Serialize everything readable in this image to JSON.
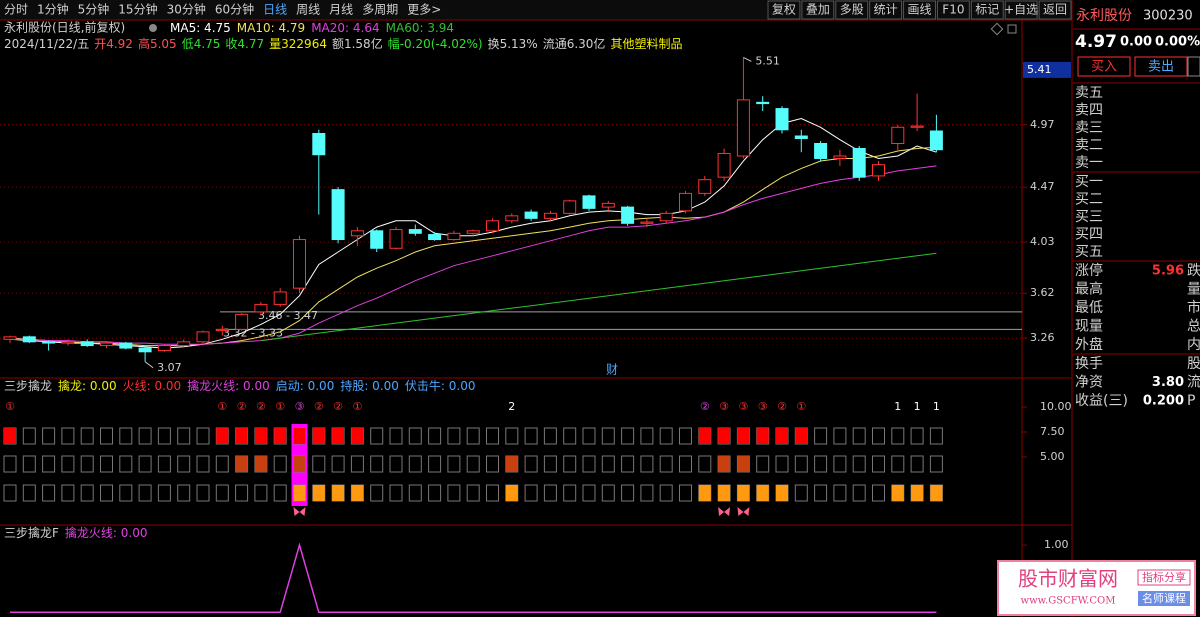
{
  "toolbar": {
    "periods": [
      "分时",
      "1分钟",
      "5分钟",
      "15分钟",
      "30分钟",
      "60分钟",
      "日线",
      "周线",
      "月线",
      "多周期",
      "更多>"
    ],
    "active": "日线",
    "tools": [
      "复权",
      "叠加",
      "多股",
      "统计",
      "画线",
      "F10",
      "标记",
      "+自选",
      "返回"
    ]
  },
  "info": {
    "title": "永利股份(日线,前复权)",
    "segments": [
      {
        "text": "2024/11/22/五",
        "color": "#d0d0d0"
      },
      {
        "text": "开4.92",
        "color": "#ff5050"
      },
      {
        "text": "高5.05",
        "color": "#ff5050"
      },
      {
        "text": "低4.75",
        "color": "#30e030"
      },
      {
        "text": "收4.77",
        "color": "#30e030"
      },
      {
        "text": "量322964",
        "color": "#f0f000"
      },
      {
        "text": "额1.58亿",
        "color": "#d0d0d0"
      },
      {
        "text": "幅-0.20(-4.02%)",
        "color": "#30e030"
      },
      {
        "text": "换5.13%",
        "color": "#d0d0d0"
      },
      {
        "text": "流通6.30亿",
        "color": "#d0d0d0"
      },
      {
        "text": "其他塑料制品",
        "color": "#f0f000"
      }
    ]
  },
  "chart_data": {
    "type": "candlestick",
    "open": [
      3.25,
      3.27,
      3.23,
      3.22,
      3.23,
      3.2,
      3.22,
      3.18,
      3.16,
      3.2,
      3.23,
      3.32,
      3.33,
      3.47,
      3.53,
      3.66,
      4.9,
      4.45,
      4.08,
      4.12,
      3.98,
      4.13,
      4.09,
      4.05,
      4.1,
      4.12,
      4.2,
      4.27,
      4.22,
      4.26,
      4.4,
      4.31,
      4.31,
      4.18,
      4.2,
      4.28,
      4.42,
      4.55,
      4.72,
      5.15,
      5.1,
      4.88,
      4.82,
      4.7,
      4.78,
      4.56,
      4.82,
      4.95,
      4.92
    ],
    "high": [
      3.28,
      3.28,
      3.24,
      3.25,
      3.25,
      3.23,
      3.23,
      3.2,
      3.21,
      3.25,
      3.32,
      3.36,
      3.46,
      3.55,
      3.66,
      4.08,
      4.93,
      4.47,
      4.15,
      4.13,
      4.15,
      4.17,
      4.11,
      4.12,
      4.13,
      4.22,
      4.26,
      4.29,
      4.28,
      4.37,
      4.41,
      4.36,
      4.32,
      4.22,
      4.28,
      4.44,
      4.56,
      4.78,
      5.51,
      5.2,
      5.12,
      4.93,
      4.84,
      4.77,
      4.8,
      4.68,
      4.97,
      5.22,
      5.05
    ],
    "low": [
      3.22,
      3.22,
      3.16,
      3.2,
      3.19,
      3.18,
      3.17,
      3.07,
      3.15,
      3.19,
      3.22,
      3.28,
      3.32,
      3.44,
      3.51,
      3.62,
      4.25,
      4.02,
      4.0,
      3.95,
      3.97,
      4.08,
      4.04,
      4.04,
      4.08,
      4.1,
      4.18,
      4.2,
      4.2,
      4.25,
      4.28,
      4.28,
      4.16,
      4.15,
      4.18,
      4.26,
      4.4,
      4.52,
      4.7,
      5.08,
      4.9,
      4.75,
      4.68,
      4.64,
      4.52,
      4.52,
      4.75,
      4.92,
      4.75
    ],
    "close": [
      3.27,
      3.23,
      3.22,
      3.23,
      3.2,
      3.22,
      3.18,
      3.15,
      3.2,
      3.23,
      3.31,
      3.33,
      3.45,
      3.53,
      3.63,
      4.05,
      4.73,
      4.05,
      4.12,
      3.98,
      4.13,
      4.1,
      4.05,
      4.1,
      4.12,
      4.2,
      4.24,
      4.22,
      4.26,
      4.36,
      4.3,
      4.34,
      4.18,
      4.19,
      4.26,
      4.42,
      4.53,
      4.74,
      5.17,
      5.14,
      4.93,
      4.86,
      4.7,
      4.72,
      4.55,
      4.65,
      4.95,
      4.96,
      4.77
    ],
    "up_color": "#ff3232",
    "down_color": "#54fcfc",
    "series": [
      {
        "name": "MA5: 4.75",
        "color": "#ffffff",
        "values": [
          3.25,
          3.24,
          3.23,
          3.22,
          3.22,
          3.21,
          3.2,
          3.19,
          3.18,
          3.19,
          3.21,
          3.25,
          3.3,
          3.37,
          3.45,
          3.6,
          3.85,
          3.95,
          4.05,
          4.15,
          4.2,
          4.2,
          4.1,
          4.08,
          4.08,
          4.11,
          4.15,
          4.18,
          4.2,
          4.24,
          4.27,
          4.28,
          4.27,
          4.25,
          4.25,
          4.28,
          4.35,
          4.48,
          4.68,
          4.85,
          4.98,
          5.02,
          4.95,
          4.85,
          4.76,
          4.7,
          4.72,
          4.8,
          4.75
        ]
      },
      {
        "name": "MA10: 4.79",
        "color": "#f0e060",
        "values": [
          3.26,
          3.25,
          3.24,
          3.23,
          3.22,
          3.22,
          3.21,
          3.2,
          3.2,
          3.2,
          3.21,
          3.22,
          3.24,
          3.27,
          3.31,
          3.4,
          3.55,
          3.65,
          3.75,
          3.82,
          3.88,
          3.95,
          4.0,
          4.02,
          4.04,
          4.06,
          4.08,
          4.1,
          4.12,
          4.15,
          4.18,
          4.2,
          4.21,
          4.22,
          4.23,
          4.22,
          4.23,
          4.27,
          4.35,
          4.45,
          4.55,
          4.62,
          4.68,
          4.7,
          4.7,
          4.72,
          4.76,
          4.78,
          4.79
        ]
      },
      {
        "name": "MA20: 4.64",
        "color": "#e040e0",
        "values": [
          3.25,
          3.25,
          3.24,
          3.24,
          3.23,
          3.23,
          3.22,
          3.22,
          3.21,
          3.21,
          3.21,
          3.22,
          3.23,
          3.24,
          3.26,
          3.3,
          3.38,
          3.45,
          3.52,
          3.58,
          3.65,
          3.72,
          3.78,
          3.84,
          3.88,
          3.92,
          3.96,
          4.0,
          4.04,
          4.08,
          4.12,
          4.15,
          4.15,
          4.16,
          4.18,
          4.2,
          4.23,
          4.27,
          4.33,
          4.38,
          4.42,
          4.46,
          4.5,
          4.53,
          4.55,
          4.57,
          4.6,
          4.62,
          4.64
        ]
      },
      {
        "name": "MA60: 3.94",
        "color": "#30c030",
        "values": [
          null,
          null,
          null,
          null,
          null,
          null,
          null,
          null,
          null,
          null,
          null,
          null,
          null,
          3.24,
          3.26,
          3.28,
          3.3,
          3.32,
          3.34,
          3.36,
          3.38,
          3.4,
          3.42,
          3.44,
          3.46,
          3.48,
          3.5,
          3.52,
          3.54,
          3.56,
          3.58,
          3.6,
          3.62,
          3.64,
          3.66,
          3.68,
          3.7,
          3.72,
          3.74,
          3.76,
          3.78,
          3.8,
          3.82,
          3.84,
          3.86,
          3.88,
          3.9,
          3.92,
          3.94
        ]
      }
    ],
    "ylim": [
      2.94,
      5.81
    ],
    "yticks": [
      3.26,
      3.62,
      4.03,
      4.47,
      4.97
    ],
    "grid": true,
    "price_marker": 5.41,
    "gaps": [
      {
        "low": 3.46,
        "high": 3.47,
        "label": "3.46 - 3.47"
      },
      {
        "low": 3.32,
        "high": 3.33,
        "label": "3.32 - 3.33"
      }
    ],
    "event_marker": "财"
  },
  "indicator": {
    "legend": [
      {
        "text": "三步擒龙",
        "color": "#d0d0d0"
      },
      {
        "text": "擒龙: 0.00",
        "color": "#f0f000"
      },
      {
        "text": "火线: 0.00",
        "color": "#ff3030"
      },
      {
        "text": "擒龙火线: 0.00",
        "color": "#e040e0"
      },
      {
        "text": "启动: 0.00",
        "color": "#4da6ff"
      },
      {
        "text": "持股: 0.00",
        "color": "#4da6ff"
      },
      {
        "text": "伏击牛: 0.00",
        "color": "#4da6ff"
      }
    ],
    "ylim": [
      -1.5,
      11.2
    ],
    "yticks": [
      {
        "value": 10,
        "label": "10.00"
      },
      {
        "value": 7.5,
        "label": "7.50"
      },
      {
        "value": 5,
        "label": "5.00"
      }
    ],
    "signals": [
      {
        "col": 0,
        "text": "①",
        "color": "#ff3030"
      },
      {
        "col": 11,
        "text": "①",
        "color": "#ff3030"
      },
      {
        "col": 12,
        "text": "②",
        "color": "#ff3030"
      },
      {
        "col": 13,
        "text": "②",
        "color": "#ff3030"
      },
      {
        "col": 14,
        "text": "①",
        "color": "#ff3030"
      },
      {
        "col": 15,
        "text": "③",
        "color": "#e040e0"
      },
      {
        "col": 16,
        "text": "②",
        "color": "#ff3030"
      },
      {
        "col": 17,
        "text": "②",
        "color": "#ff3030"
      },
      {
        "col": 18,
        "text": "①",
        "color": "#ff3030"
      },
      {
        "col": 26,
        "text": "2",
        "color": "#ffffff"
      },
      {
        "col": 36,
        "text": "②",
        "color": "#e040e0"
      },
      {
        "col": 37,
        "text": "③",
        "color": "#ff3030"
      },
      {
        "col": 38,
        "text": "③",
        "color": "#ff3030"
      },
      {
        "col": 39,
        "text": "③",
        "color": "#ff3030"
      },
      {
        "col": 40,
        "text": "②",
        "color": "#ff3030"
      },
      {
        "col": 41,
        "text": "①",
        "color": "#ff3030"
      },
      {
        "col": 46,
        "text": "1",
        "color": "#ffffff"
      },
      {
        "col": 47,
        "text": "1",
        "color": "#ffffff"
      },
      {
        "col": 48,
        "text": "1",
        "color": "#ffffff"
      }
    ],
    "rows": [
      {
        "color": "#ff0000",
        "columns": [
          0,
          11,
          12,
          13,
          14,
          15,
          16,
          17,
          18,
          36,
          37,
          38,
          39,
          40,
          41
        ]
      },
      {
        "color": "#c84010",
        "columns": [
          12,
          13,
          15,
          26,
          37,
          38
        ]
      },
      {
        "color": "#ff9a10",
        "columns": [
          15,
          16,
          17,
          18,
          26,
          36,
          37,
          38,
          39,
          40,
          46,
          47,
          48
        ]
      }
    ],
    "highlight": {
      "color": "#ff00ff",
      "columns": [
        15
      ]
    },
    "butterflies": {
      "color": "#ff6088",
      "columns": [
        15,
        37,
        38
      ]
    }
  },
  "indicator2": {
    "legend": [
      {
        "text": "三步擒龙F",
        "color": "#d0d0d0"
      },
      {
        "text": "擒龙火线: 0.00",
        "color": "#e040e0"
      }
    ],
    "ylim": [
      -0.07,
      1.15
    ],
    "yticks": [
      {
        "value": 1,
        "label": "1.00"
      }
    ],
    "color": "#e040e0",
    "values": [
      0,
      0,
      0,
      0,
      0,
      0,
      0,
      0,
      0,
      0,
      0,
      0,
      0,
      0,
      0,
      1,
      0,
      0,
      0,
      0,
      0,
      0,
      0,
      0,
      0,
      0,
      0,
      0,
      0,
      0,
      0,
      0,
      0,
      0,
      0,
      0,
      0,
      0,
      0,
      0,
      0,
      0,
      0,
      0,
      0,
      0,
      0,
      0,
      0
    ]
  },
  "quote": {
    "name": "永利股份",
    "code": "300230",
    "price": "4.97",
    "change": "0.00",
    "pct": "0.00%",
    "buy": "买入",
    "sell": "卖出",
    "asks": [
      "卖五",
      "卖四",
      "卖三",
      "卖二",
      "卖一"
    ],
    "bids": [
      "买一",
      "买二",
      "买三",
      "买四",
      "买五"
    ],
    "stats": [
      {
        "label": "涨停",
        "value": "5.96",
        "right": "跌"
      },
      {
        "label": "最高",
        "right": "量"
      },
      {
        "label": "最低",
        "right": "市"
      },
      {
        "label": "现量",
        "right": "总"
      },
      {
        "label": "外盘",
        "right": "内"
      }
    ],
    "stats2": [
      {
        "label": "换手",
        "right": "股"
      },
      {
        "label": "净资",
        "value": "3.80",
        "right": "流"
      },
      {
        "label": "收益(三)",
        "value": "0.200",
        "right": "P"
      }
    ]
  },
  "watermark": {
    "title": "股市财富网",
    "url": "www.GSCFW.COM",
    "tags": [
      "指标分享",
      "名师课程"
    ]
  }
}
